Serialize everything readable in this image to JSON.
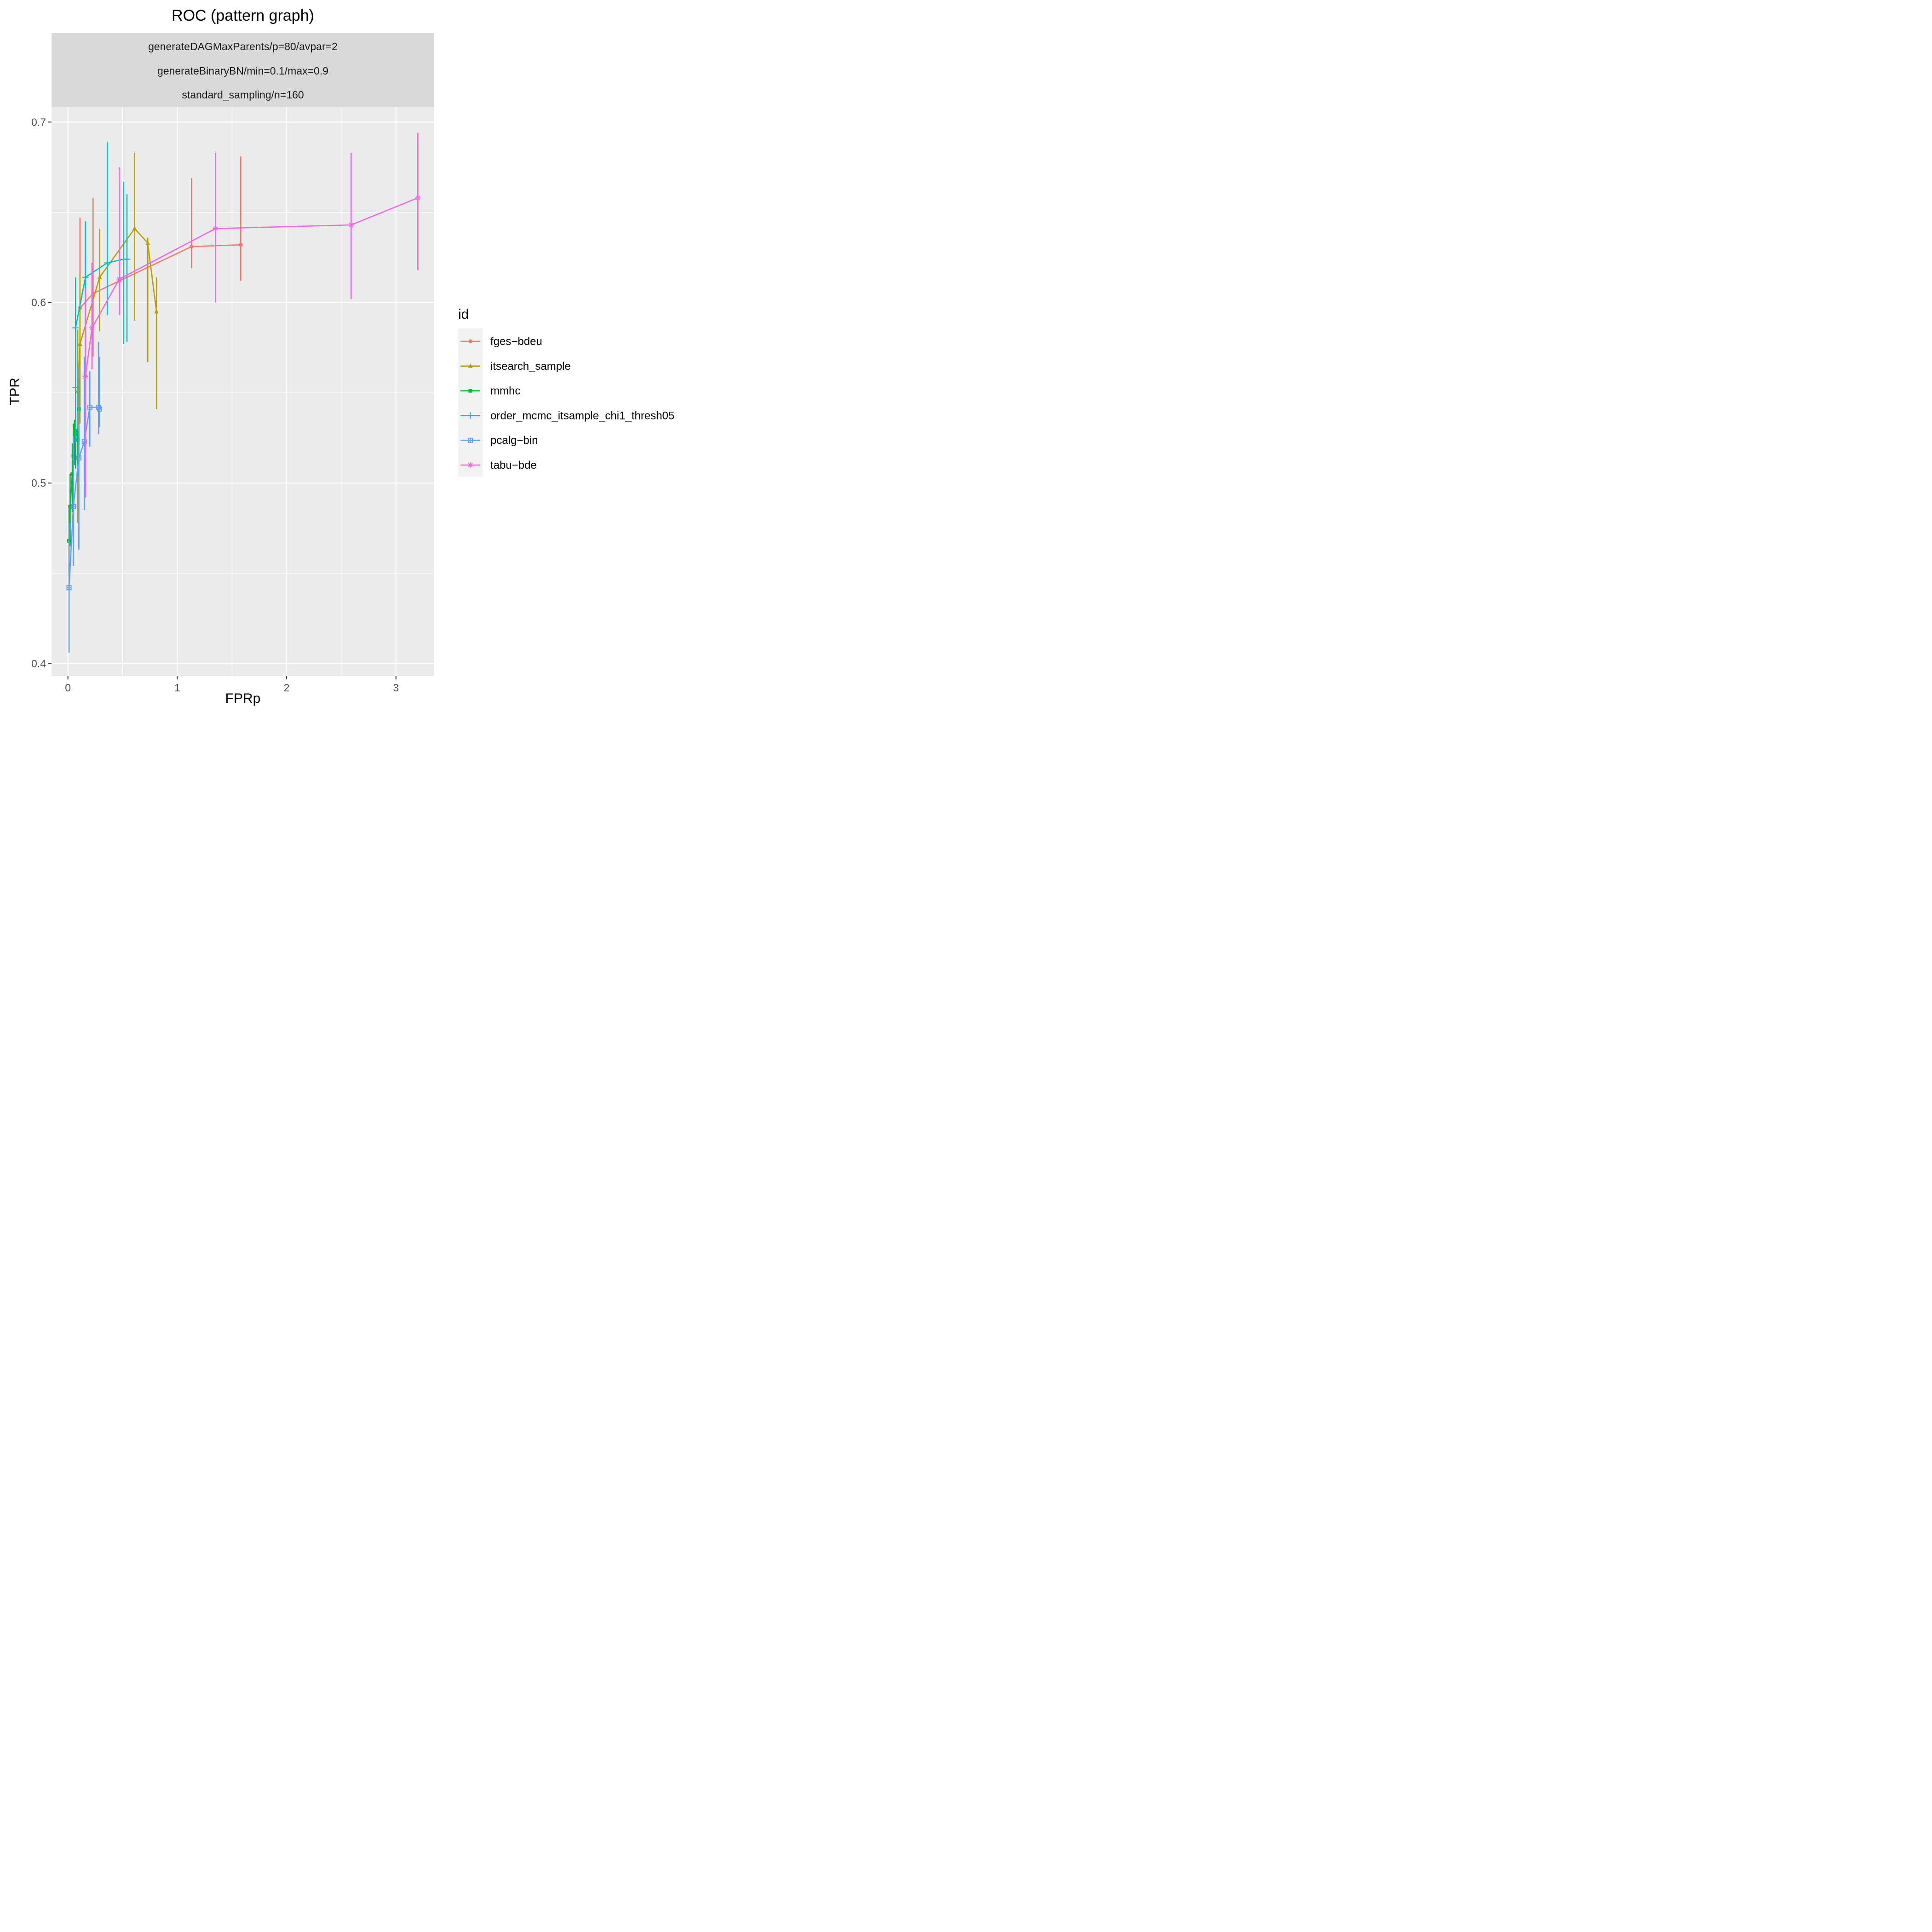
{
  "chart_data": {
    "type": "line",
    "title": "ROC (pattern graph)",
    "strip_labels": [
      "generateDAGMaxParents/p=80/avpar=2",
      "generateBinaryBN/min=0.1/max=0.9",
      "standard_sampling/n=160"
    ],
    "xlabel": "FPRp",
    "ylabel": "TPR",
    "xlim": [
      -0.15,
      3.35
    ],
    "ylim": [
      0.393,
      0.7085
    ],
    "x_ticks": [
      0,
      1,
      2,
      3
    ],
    "x_tick_labels": [
      "0",
      "1",
      "2",
      "3"
    ],
    "y_ticks": [
      0.4,
      0.5,
      0.6,
      0.7
    ],
    "y_tick_labels": [
      "0.4",
      "0.5",
      "0.6",
      "0.7"
    ],
    "grid": true,
    "legend": {
      "title": "id",
      "position": "right"
    },
    "series": [
      {
        "name": "fges−bdeu",
        "color": "#F8766D",
        "marker": "circle",
        "points": [
          {
            "x": 0.11,
            "y": 0.597,
            "lo": 0.58,
            "hi": 0.647
          },
          {
            "x": 0.23,
            "y": 0.605,
            "lo": 0.57,
            "hi": 0.658
          },
          {
            "x": 0.47,
            "y": 0.612,
            "lo": 0.594,
            "hi": 0.627
          },
          {
            "x": 1.13,
            "y": 0.631,
            "lo": 0.619,
            "hi": 0.669
          },
          {
            "x": 1.58,
            "y": 0.632,
            "lo": 0.612,
            "hi": 0.681
          }
        ]
      },
      {
        "name": "itsearch_sample",
        "color": "#B79F00",
        "marker": "triangle",
        "points": [
          {
            "x": 0.09,
            "y": 0.551,
            "lo": 0.478,
            "hi": 0.585
          },
          {
            "x": 0.11,
            "y": 0.577,
            "lo": 0.533,
            "hi": 0.616
          },
          {
            "x": 0.29,
            "y": 0.614,
            "lo": 0.584,
            "hi": 0.641
          },
          {
            "x": 0.61,
            "y": 0.641,
            "lo": 0.59,
            "hi": 0.683
          },
          {
            "x": 0.73,
            "y": 0.633,
            "lo": 0.567,
            "hi": 0.636
          },
          {
            "x": 0.81,
            "y": 0.595,
            "lo": 0.541,
            "hi": 0.614
          }
        ]
      },
      {
        "name": "mmhc",
        "color": "#00BA38",
        "marker": "square",
        "points": [
          {
            "x": 0.01,
            "y": 0.468,
            "lo": 0.449,
            "hi": 0.488
          },
          {
            "x": 0.02,
            "y": 0.487,
            "lo": 0.465,
            "hi": 0.505
          },
          {
            "x": 0.04,
            "y": 0.505,
            "lo": 0.484,
            "hi": 0.522
          },
          {
            "x": 0.05,
            "y": 0.515,
            "lo": 0.492,
            "hi": 0.531
          },
          {
            "x": 0.06,
            "y": 0.532,
            "lo": 0.51,
            "hi": 0.535
          },
          {
            "x": 0.07,
            "y": 0.529,
            "lo": 0.508,
            "hi": 0.533
          },
          {
            "x": 0.09,
            "y": 0.524,
            "lo": 0.504,
            "hi": 0.528
          },
          {
            "x": 0.1,
            "y": 0.541,
            "lo": 0.521,
            "hi": 0.557
          }
        ]
      },
      {
        "name": "order_mcmc_itsample_chi1_thresh05",
        "color": "#00BFC4",
        "marker": "plus",
        "points": [
          {
            "x": 0.07,
            "y": 0.553,
            "lo": 0.522,
            "hi": 0.586
          },
          {
            "x": 0.07,
            "y": 0.586,
            "lo": 0.56,
            "hi": 0.614
          },
          {
            "x": 0.16,
            "y": 0.614,
            "lo": 0.58,
            "hi": 0.645
          },
          {
            "x": 0.36,
            "y": 0.622,
            "lo": 0.593,
            "hi": 0.689
          },
          {
            "x": 0.51,
            "y": 0.624,
            "lo": 0.577,
            "hi": 0.667
          },
          {
            "x": 0.54,
            "y": 0.624,
            "lo": 0.578,
            "hi": 0.66
          }
        ]
      },
      {
        "name": "pcalg−bin",
        "color": "#619CFF",
        "marker": "square-cross",
        "points": [
          {
            "x": 0.01,
            "y": 0.442,
            "lo": 0.406,
            "hi": 0.478
          },
          {
            "x": 0.05,
            "y": 0.487,
            "lo": 0.454,
            "hi": 0.526
          },
          {
            "x": 0.1,
            "y": 0.514,
            "lo": 0.463,
            "hi": 0.565
          },
          {
            "x": 0.15,
            "y": 0.523,
            "lo": 0.485,
            "hi": 0.57
          },
          {
            "x": 0.2,
            "y": 0.542,
            "lo": 0.52,
            "hi": 0.562
          },
          {
            "x": 0.28,
            "y": 0.542,
            "lo": 0.527,
            "hi": 0.578
          },
          {
            "x": 0.29,
            "y": 0.541,
            "lo": 0.531,
            "hi": 0.57
          }
        ]
      },
      {
        "name": "tabu−bde",
        "color": "#F564E3",
        "marker": "asterisk",
        "points": [
          {
            "x": 0.16,
            "y": 0.559,
            "lo": 0.492,
            "hi": 0.608
          },
          {
            "x": 0.22,
            "y": 0.586,
            "lo": 0.563,
            "hi": 0.622
          },
          {
            "x": 0.47,
            "y": 0.613,
            "lo": 0.593,
            "hi": 0.675
          },
          {
            "x": 1.35,
            "y": 0.641,
            "lo": 0.6,
            "hi": 0.683
          },
          {
            "x": 2.59,
            "y": 0.643,
            "lo": 0.602,
            "hi": 0.683
          },
          {
            "x": 3.2,
            "y": 0.658,
            "lo": 0.618,
            "hi": 0.694
          }
        ]
      }
    ]
  }
}
